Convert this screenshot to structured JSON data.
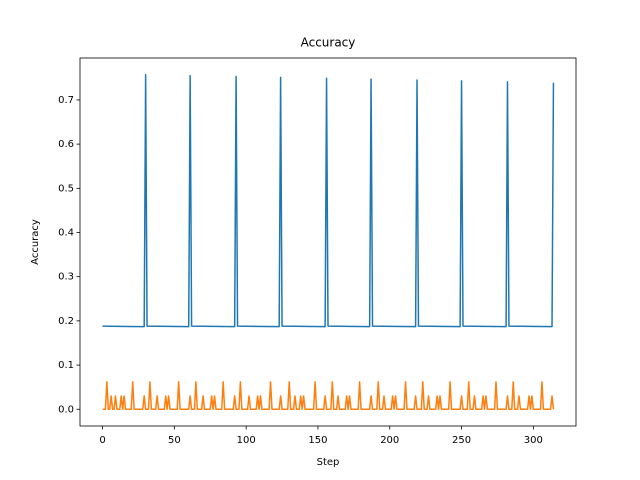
{
  "chart_data": {
    "type": "line",
    "title": "Accuracy",
    "xlabel": "Step",
    "ylabel": "Accuracy",
    "xlim": [
      -15.7,
      329.7
    ],
    "ylim": [
      -0.0379,
      0.7949
    ],
    "xticks": [
      0,
      50,
      100,
      150,
      200,
      250,
      300
    ],
    "yticks": [
      {
        "value": 0,
        "label": "0.0"
      },
      {
        "value": 0.1,
        "label": "0.1"
      },
      {
        "value": 0.2,
        "label": "0.2"
      },
      {
        "value": 0.3,
        "label": "0.3"
      },
      {
        "value": 0.4,
        "label": "0.4"
      },
      {
        "value": 0.5,
        "label": "0.5"
      },
      {
        "value": 0.6,
        "label": "0.6"
      },
      {
        "value": 0.7,
        "label": "0.7"
      }
    ],
    "grid": false,
    "series": [
      {
        "color": "#1f77b4",
        "x": [
          0,
          29,
          30,
          31,
          60,
          61,
          62,
          92,
          93,
          94,
          123,
          124,
          125,
          155,
          156,
          157,
          186,
          187,
          188,
          218,
          219,
          220,
          249,
          250,
          251,
          281,
          282,
          283,
          313,
          314
        ],
        "values": [
          0.188,
          0.187,
          0.757,
          0.188,
          0.187,
          0.755,
          0.188,
          0.187,
          0.753,
          0.188,
          0.187,
          0.751,
          0.188,
          0.187,
          0.749,
          0.188,
          0.187,
          0.747,
          0.188,
          0.187,
          0.745,
          0.188,
          0.187,
          0.743,
          0.188,
          0.187,
          0.741,
          0.188,
          0.187,
          0.739
        ]
      },
      {
        "color": "#ff7f0e",
        "x": [
          0,
          2,
          3,
          4,
          5,
          6,
          7,
          8,
          9,
          10,
          12,
          13,
          14,
          15,
          16,
          20,
          21,
          22,
          28,
          29,
          30,
          32,
          33,
          34,
          37,
          38,
          39,
          43,
          44,
          45,
          46,
          47,
          52,
          53,
          54,
          60,
          61,
          62,
          64,
          65,
          66,
          69,
          70,
          71,
          75,
          76,
          77,
          78,
          79,
          83,
          84,
          85,
          91,
          92,
          93,
          95,
          96,
          97,
          101,
          102,
          103,
          107,
          108,
          109,
          110,
          111,
          116,
          117,
          118,
          123,
          124,
          125,
          129,
          130,
          131,
          133,
          134,
          135,
          137,
          138,
          139,
          140,
          141,
          147,
          148,
          149,
          154,
          155,
          156,
          159,
          160,
          161,
          163,
          164,
          165,
          169,
          170,
          171,
          172,
          173,
          178,
          179,
          180,
          186,
          187,
          188,
          191,
          192,
          193,
          195,
          196,
          197,
          201,
          202,
          203,
          204,
          205,
          210,
          211,
          212,
          217,
          218,
          219,
          222,
          223,
          224,
          226,
          227,
          228,
          232,
          233,
          234,
          235,
          236,
          241,
          242,
          243,
          249,
          250,
          251,
          254,
          255,
          256,
          258,
          259,
          260,
          264,
          265,
          266,
          267,
          268,
          273,
          274,
          275,
          281,
          282,
          283,
          285,
          286,
          287,
          289,
          290,
          291,
          296,
          297,
          298,
          299,
          300,
          305,
          306,
          307,
          312,
          313,
          314
        ],
        "values": [
          0,
          0,
          0.062,
          0,
          0,
          0.03,
          0,
          0,
          0.03,
          0,
          0,
          0.03,
          0,
          0.03,
          0,
          0,
          0.062,
          0,
          0,
          0.03,
          0,
          0,
          0.062,
          0,
          0,
          0.03,
          0,
          0,
          0.03,
          0,
          0.03,
          0,
          0,
          0.062,
          0,
          0,
          0.03,
          0,
          0,
          0.062,
          0,
          0,
          0.03,
          0,
          0,
          0.03,
          0,
          0.03,
          0,
          0,
          0.062,
          0,
          0,
          0.03,
          0,
          0,
          0.062,
          0,
          0,
          0.03,
          0,
          0,
          0.03,
          0,
          0.03,
          0,
          0,
          0.062,
          0,
          0,
          0.03,
          0,
          0,
          0.062,
          0,
          0,
          0.03,
          0,
          0,
          0.03,
          0,
          0.03,
          0,
          0,
          0.062,
          0,
          0,
          0.03,
          0,
          0,
          0.062,
          0,
          0,
          0.03,
          0,
          0,
          0.03,
          0,
          0.03,
          0,
          0,
          0.062,
          0,
          0,
          0.03,
          0,
          0,
          0.062,
          0,
          0,
          0.03,
          0,
          0,
          0.03,
          0,
          0.03,
          0,
          0,
          0.062,
          0,
          0,
          0.03,
          0,
          0,
          0.062,
          0,
          0,
          0.03,
          0,
          0,
          0.03,
          0,
          0.03,
          0,
          0,
          0.062,
          0,
          0,
          0.03,
          0,
          0,
          0.062,
          0,
          0,
          0.03,
          0,
          0,
          0.03,
          0,
          0.03,
          0,
          0,
          0.062,
          0,
          0,
          0.03,
          0,
          0,
          0.062,
          0,
          0,
          0.03,
          0,
          0,
          0.03,
          0,
          0.03,
          0,
          0,
          0.062,
          0,
          0,
          0.03,
          0
        ]
      }
    ]
  }
}
